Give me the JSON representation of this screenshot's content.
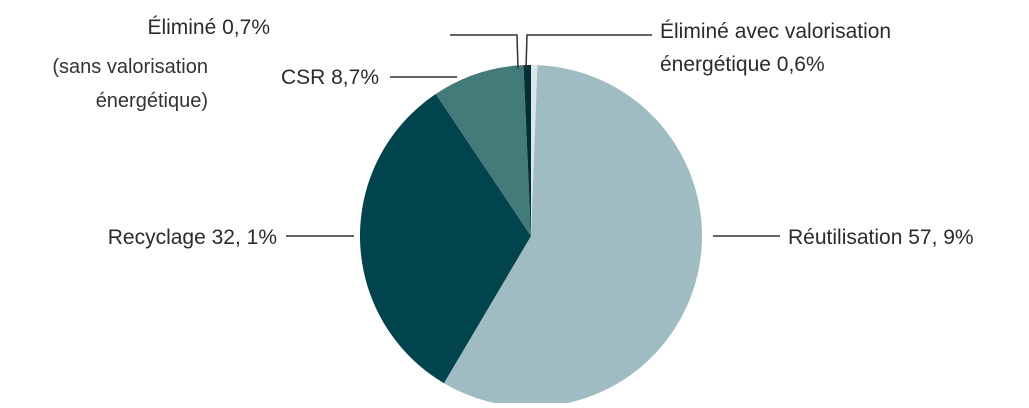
{
  "chart_data": {
    "type": "pie",
    "title": "",
    "slices": [
      {
        "name": "Réutilisation",
        "value": 57.9,
        "label": "Réutilisation 57, 9%",
        "color": "#a0bcc3"
      },
      {
        "name": "Recyclage",
        "value": 32.1,
        "label": "Recyclage 32, 1%",
        "color": "#02444d"
      },
      {
        "name": "CSR",
        "value": 8.7,
        "label": "CSR 8,7%",
        "color": "#437b78"
      },
      {
        "name": "Éliminé",
        "value": 0.7,
        "label": "Éliminé 0,7%",
        "note": "(sans valorisation énergétique)",
        "note_lines": [
          "(sans valorisation",
          "énergétique)"
        ],
        "color": "#012f35"
      },
      {
        "name": "Éliminé avec valorisation énergétique",
        "value": 0.6,
        "label_lines": [
          "Éliminé avec valorisation",
          "énergétique 0,6%"
        ],
        "color": "#dbe6e9"
      }
    ],
    "legend": "none",
    "grid": false
  }
}
